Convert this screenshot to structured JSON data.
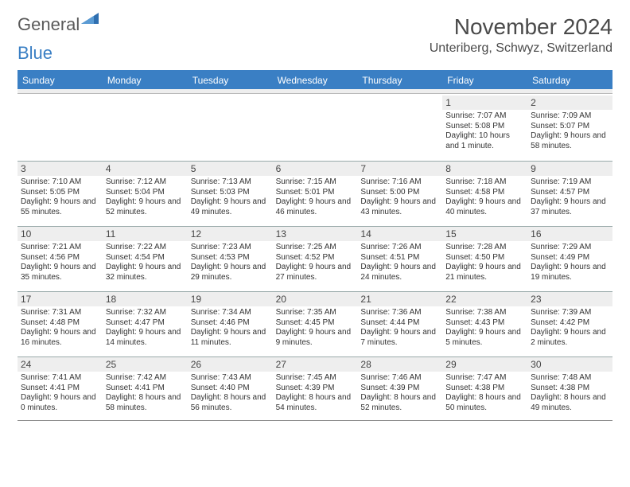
{
  "logo": {
    "text_gray": "General",
    "text_blue": "Blue"
  },
  "title": "November 2024",
  "location": "Unteriberg, Schwyz, Switzerland",
  "colors": {
    "header_bg": "#3a7fc4",
    "header_text": "#ffffff",
    "daynum_bg": "#eeeeee",
    "body_text": "#333333",
    "title_text": "#4a4a4a"
  },
  "typography": {
    "title_fontsize": 28,
    "location_fontsize": 16,
    "dayhead_fontsize": 12,
    "daynum_fontsize": 12,
    "detail_fontsize": 10
  },
  "day_names": [
    "Sunday",
    "Monday",
    "Tuesday",
    "Wednesday",
    "Thursday",
    "Friday",
    "Saturday"
  ],
  "weeks": [
    [
      {
        "day": "",
        "sunrise": "",
        "sunset": "",
        "daylight": ""
      },
      {
        "day": "",
        "sunrise": "",
        "sunset": "",
        "daylight": ""
      },
      {
        "day": "",
        "sunrise": "",
        "sunset": "",
        "daylight": ""
      },
      {
        "day": "",
        "sunrise": "",
        "sunset": "",
        "daylight": ""
      },
      {
        "day": "",
        "sunrise": "",
        "sunset": "",
        "daylight": ""
      },
      {
        "day": "1",
        "sunrise": "Sunrise: 7:07 AM",
        "sunset": "Sunset: 5:08 PM",
        "daylight": "Daylight: 10 hours and 1 minute."
      },
      {
        "day": "2",
        "sunrise": "Sunrise: 7:09 AM",
        "sunset": "Sunset: 5:07 PM",
        "daylight": "Daylight: 9 hours and 58 minutes."
      }
    ],
    [
      {
        "day": "3",
        "sunrise": "Sunrise: 7:10 AM",
        "sunset": "Sunset: 5:05 PM",
        "daylight": "Daylight: 9 hours and 55 minutes."
      },
      {
        "day": "4",
        "sunrise": "Sunrise: 7:12 AM",
        "sunset": "Sunset: 5:04 PM",
        "daylight": "Daylight: 9 hours and 52 minutes."
      },
      {
        "day": "5",
        "sunrise": "Sunrise: 7:13 AM",
        "sunset": "Sunset: 5:03 PM",
        "daylight": "Daylight: 9 hours and 49 minutes."
      },
      {
        "day": "6",
        "sunrise": "Sunrise: 7:15 AM",
        "sunset": "Sunset: 5:01 PM",
        "daylight": "Daylight: 9 hours and 46 minutes."
      },
      {
        "day": "7",
        "sunrise": "Sunrise: 7:16 AM",
        "sunset": "Sunset: 5:00 PM",
        "daylight": "Daylight: 9 hours and 43 minutes."
      },
      {
        "day": "8",
        "sunrise": "Sunrise: 7:18 AM",
        "sunset": "Sunset: 4:58 PM",
        "daylight": "Daylight: 9 hours and 40 minutes."
      },
      {
        "day": "9",
        "sunrise": "Sunrise: 7:19 AM",
        "sunset": "Sunset: 4:57 PM",
        "daylight": "Daylight: 9 hours and 37 minutes."
      }
    ],
    [
      {
        "day": "10",
        "sunrise": "Sunrise: 7:21 AM",
        "sunset": "Sunset: 4:56 PM",
        "daylight": "Daylight: 9 hours and 35 minutes."
      },
      {
        "day": "11",
        "sunrise": "Sunrise: 7:22 AM",
        "sunset": "Sunset: 4:54 PM",
        "daylight": "Daylight: 9 hours and 32 minutes."
      },
      {
        "day": "12",
        "sunrise": "Sunrise: 7:23 AM",
        "sunset": "Sunset: 4:53 PM",
        "daylight": "Daylight: 9 hours and 29 minutes."
      },
      {
        "day": "13",
        "sunrise": "Sunrise: 7:25 AM",
        "sunset": "Sunset: 4:52 PM",
        "daylight": "Daylight: 9 hours and 27 minutes."
      },
      {
        "day": "14",
        "sunrise": "Sunrise: 7:26 AM",
        "sunset": "Sunset: 4:51 PM",
        "daylight": "Daylight: 9 hours and 24 minutes."
      },
      {
        "day": "15",
        "sunrise": "Sunrise: 7:28 AM",
        "sunset": "Sunset: 4:50 PM",
        "daylight": "Daylight: 9 hours and 21 minutes."
      },
      {
        "day": "16",
        "sunrise": "Sunrise: 7:29 AM",
        "sunset": "Sunset: 4:49 PM",
        "daylight": "Daylight: 9 hours and 19 minutes."
      }
    ],
    [
      {
        "day": "17",
        "sunrise": "Sunrise: 7:31 AM",
        "sunset": "Sunset: 4:48 PM",
        "daylight": "Daylight: 9 hours and 16 minutes."
      },
      {
        "day": "18",
        "sunrise": "Sunrise: 7:32 AM",
        "sunset": "Sunset: 4:47 PM",
        "daylight": "Daylight: 9 hours and 14 minutes."
      },
      {
        "day": "19",
        "sunrise": "Sunrise: 7:34 AM",
        "sunset": "Sunset: 4:46 PM",
        "daylight": "Daylight: 9 hours and 11 minutes."
      },
      {
        "day": "20",
        "sunrise": "Sunrise: 7:35 AM",
        "sunset": "Sunset: 4:45 PM",
        "daylight": "Daylight: 9 hours and 9 minutes."
      },
      {
        "day": "21",
        "sunrise": "Sunrise: 7:36 AM",
        "sunset": "Sunset: 4:44 PM",
        "daylight": "Daylight: 9 hours and 7 minutes."
      },
      {
        "day": "22",
        "sunrise": "Sunrise: 7:38 AM",
        "sunset": "Sunset: 4:43 PM",
        "daylight": "Daylight: 9 hours and 5 minutes."
      },
      {
        "day": "23",
        "sunrise": "Sunrise: 7:39 AM",
        "sunset": "Sunset: 4:42 PM",
        "daylight": "Daylight: 9 hours and 2 minutes."
      }
    ],
    [
      {
        "day": "24",
        "sunrise": "Sunrise: 7:41 AM",
        "sunset": "Sunset: 4:41 PM",
        "daylight": "Daylight: 9 hours and 0 minutes."
      },
      {
        "day": "25",
        "sunrise": "Sunrise: 7:42 AM",
        "sunset": "Sunset: 4:41 PM",
        "daylight": "Daylight: 8 hours and 58 minutes."
      },
      {
        "day": "26",
        "sunrise": "Sunrise: 7:43 AM",
        "sunset": "Sunset: 4:40 PM",
        "daylight": "Daylight: 8 hours and 56 minutes."
      },
      {
        "day": "27",
        "sunrise": "Sunrise: 7:45 AM",
        "sunset": "Sunset: 4:39 PM",
        "daylight": "Daylight: 8 hours and 54 minutes."
      },
      {
        "day": "28",
        "sunrise": "Sunrise: 7:46 AM",
        "sunset": "Sunset: 4:39 PM",
        "daylight": "Daylight: 8 hours and 52 minutes."
      },
      {
        "day": "29",
        "sunrise": "Sunrise: 7:47 AM",
        "sunset": "Sunset: 4:38 PM",
        "daylight": "Daylight: 8 hours and 50 minutes."
      },
      {
        "day": "30",
        "sunrise": "Sunrise: 7:48 AM",
        "sunset": "Sunset: 4:38 PM",
        "daylight": "Daylight: 8 hours and 49 minutes."
      }
    ]
  ]
}
